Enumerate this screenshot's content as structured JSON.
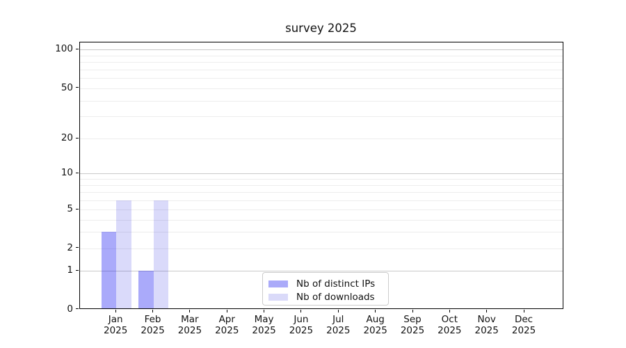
{
  "chart_data": {
    "type": "bar",
    "title": "survey 2025",
    "categories": [
      "Jan",
      "Feb",
      "Mar",
      "Apr",
      "May",
      "Jun",
      "Jul",
      "Aug",
      "Sep",
      "Oct",
      "Nov",
      "Dec"
    ],
    "year": "2025",
    "series": [
      {
        "name": "Nb of distinct IPs",
        "values": [
          3,
          1,
          0,
          0,
          0,
          0,
          0,
          0,
          0,
          0,
          0,
          0
        ],
        "color": "rgba(12,12,241,0.35)",
        "swatch_color": "#aaaaf9"
      },
      {
        "name": "Nb of downloads",
        "values": [
          6,
          6,
          0,
          0,
          0,
          0,
          0,
          0,
          0,
          0,
          0,
          0
        ],
        "color": "rgba(10,10,220,0.15)",
        "swatch_color": "#dadaf9"
      }
    ],
    "y_axis": {
      "scale": "log1p",
      "range": [
        0,
        125
      ],
      "tick_values": [
        100,
        50,
        20,
        10,
        5,
        2,
        1,
        0
      ],
      "tick_labels": [
        "100",
        "50",
        "20",
        "10",
        "5",
        "2",
        "1",
        "0"
      ],
      "major_gridlines": [
        1,
        10,
        100
      ],
      "minor_gridlines": [
        2,
        3,
        4,
        5,
        6,
        7,
        8,
        9,
        20,
        30,
        40,
        50,
        60,
        70,
        80,
        90
      ]
    },
    "x_axis": {
      "tick_label_line2": "2025"
    },
    "legend": {
      "position": "lower center",
      "entries": [
        "Nb of distinct IPs",
        "Nb of downloads"
      ]
    },
    "grid": true,
    "colors": {
      "spine": "#000000",
      "minor_grid": "#ededed",
      "major_grid": "#c9c9c9",
      "legend_border": "#cccccc"
    }
  }
}
